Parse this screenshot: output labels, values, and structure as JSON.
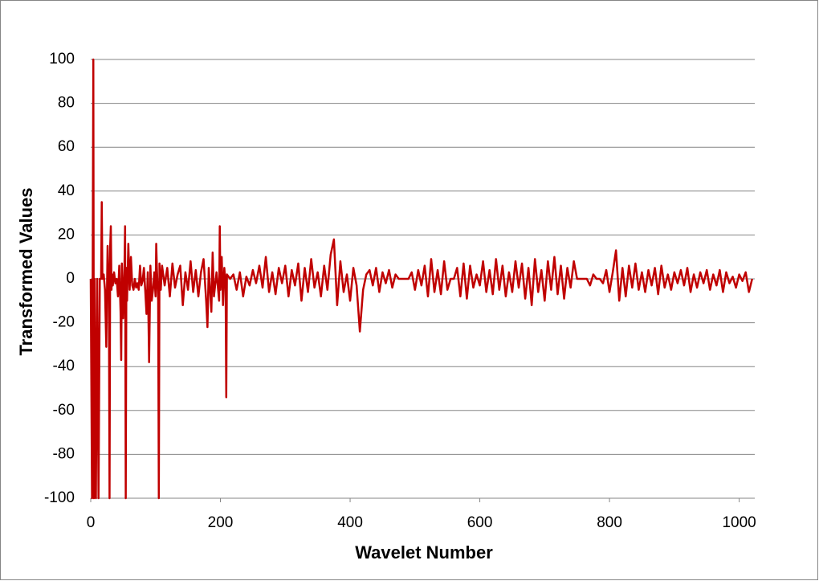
{
  "chart_data": {
    "type": "line",
    "x_label": "Wavelet Number",
    "y_label": "Transformed Values",
    "xlim": [
      0,
      1024
    ],
    "xticks": [
      0,
      200,
      400,
      600,
      800,
      1000
    ],
    "ylim": [
      -100,
      100
    ],
    "yticks": [
      -100,
      -80,
      -60,
      -40,
      -20,
      0,
      20,
      40,
      60,
      80,
      100
    ],
    "grid": true,
    "series": [
      {
        "color": "#c00000",
        "x": [
          0,
          2,
          3,
          4,
          5,
          6,
          8,
          10,
          12,
          14,
          16,
          17,
          18,
          20,
          22,
          24,
          26,
          28,
          29,
          30,
          31,
          32,
          33,
          34,
          36,
          38,
          40,
          42,
          44,
          46,
          47,
          48,
          50,
          52,
          53,
          54,
          55,
          56,
          58,
          60,
          62,
          64,
          66,
          68,
          70,
          72,
          74,
          76,
          78,
          80,
          82,
          84,
          86,
          88,
          90,
          92,
          94,
          96,
          98,
          100,
          101,
          102,
          104,
          105,
          106,
          108,
          110,
          114,
          118,
          122,
          126,
          130,
          134,
          138,
          142,
          146,
          150,
          154,
          158,
          162,
          166,
          170,
          174,
          178,
          180,
          182,
          186,
          188,
          190,
          194,
          198,
          199,
          200,
          202,
          204,
          206,
          208,
          209,
          210,
          215,
          220,
          225,
          230,
          235,
          240,
          245,
          250,
          255,
          260,
          265,
          270,
          275,
          280,
          285,
          290,
          295,
          300,
          305,
          310,
          315,
          320,
          325,
          330,
          335,
          340,
          345,
          350,
          355,
          360,
          365,
          370,
          375,
          380,
          385,
          390,
          395,
          400,
          405,
          410,
          415,
          420,
          425,
          430,
          435,
          440,
          445,
          450,
          455,
          460,
          465,
          470,
          475,
          480,
          485,
          490,
          495,
          500,
          505,
          510,
          515,
          520,
          525,
          530,
          535,
          540,
          545,
          550,
          555,
          560,
          565,
          570,
          575,
          580,
          585,
          590,
          595,
          600,
          605,
          610,
          615,
          620,
          625,
          630,
          635,
          640,
          645,
          650,
          655,
          660,
          665,
          670,
          675,
          680,
          685,
          690,
          695,
          700,
          705,
          710,
          715,
          720,
          725,
          730,
          735,
          740,
          745,
          750,
          755,
          760,
          765,
          770,
          775,
          780,
          785,
          790,
          795,
          800,
          805,
          810,
          815,
          820,
          825,
          830,
          835,
          840,
          845,
          850,
          855,
          860,
          865,
          870,
          875,
          880,
          885,
          890,
          895,
          900,
          905,
          910,
          915,
          920,
          925,
          930,
          935,
          940,
          945,
          950,
          955,
          960,
          965,
          970,
          975,
          980,
          985,
          990,
          995,
          1000,
          1005,
          1010,
          1015,
          1020
        ],
        "values": [
          0,
          -100,
          0,
          100,
          -100,
          0,
          -100,
          0,
          -100,
          0,
          0,
          35,
          0,
          2,
          -5,
          -31,
          15,
          -5,
          -100,
          15,
          24,
          -5,
          2,
          -3,
          3,
          -2,
          0,
          -8,
          6,
          -15,
          -37,
          7,
          -18,
          5,
          24,
          -100,
          5,
          -10,
          16,
          -5,
          10,
          -3,
          -5,
          0,
          -4,
          -2,
          -5,
          6,
          -3,
          -1,
          5,
          -5,
          -16,
          3,
          -38,
          6,
          -10,
          -5,
          3,
          -8,
          16,
          5,
          -10,
          -100,
          7,
          -5,
          6,
          -3,
          5,
          -8,
          7,
          -4,
          2,
          6,
          -12,
          3,
          -5,
          8,
          -6,
          4,
          -8,
          3,
          9,
          -10,
          -22,
          5,
          -15,
          12,
          -8,
          3,
          -10,
          24,
          -5,
          10,
          -12,
          5,
          -3,
          -54,
          2,
          0,
          2,
          -5,
          3,
          -8,
          1,
          -3,
          4,
          -2,
          6,
          -4,
          10,
          -6,
          3,
          -7,
          5,
          -2,
          6,
          -8,
          4,
          -3,
          7,
          -10,
          5,
          -6,
          9,
          -4,
          3,
          -8,
          6,
          -5,
          11,
          18,
          -12,
          8,
          -6,
          2,
          -10,
          5,
          -3,
          -24,
          -5,
          2,
          4,
          -3,
          5,
          -6,
          3,
          -2,
          4,
          -4,
          2,
          0,
          0,
          0,
          0,
          3,
          -5,
          4,
          -3,
          6,
          -8,
          9,
          -6,
          4,
          -7,
          8,
          -5,
          0,
          0,
          5,
          -8,
          7,
          -9,
          6,
          -4,
          2,
          -3,
          8,
          -6,
          4,
          -7,
          9,
          -5,
          6,
          -8,
          3,
          -6,
          8,
          -4,
          7,
          -9,
          5,
          -12,
          9,
          -6,
          4,
          -10,
          8,
          -5,
          10,
          -7,
          6,
          -9,
          5,
          -4,
          8,
          0,
          0,
          0,
          0,
          -3,
          2,
          0,
          0,
          -2,
          4,
          -6,
          3,
          13,
          -10,
          5,
          -8,
          6,
          -4,
          7,
          -5,
          3,
          -6,
          4,
          -3,
          5,
          -7,
          6,
          -4,
          2,
          -5,
          3,
          -2,
          4,
          -3,
          5,
          -6,
          2,
          -4,
          3,
          -2,
          4,
          -5,
          2,
          -3,
          4,
          -6,
          3,
          -2,
          1,
          -4,
          2,
          -1,
          3,
          -6,
          0
        ]
      }
    ]
  }
}
